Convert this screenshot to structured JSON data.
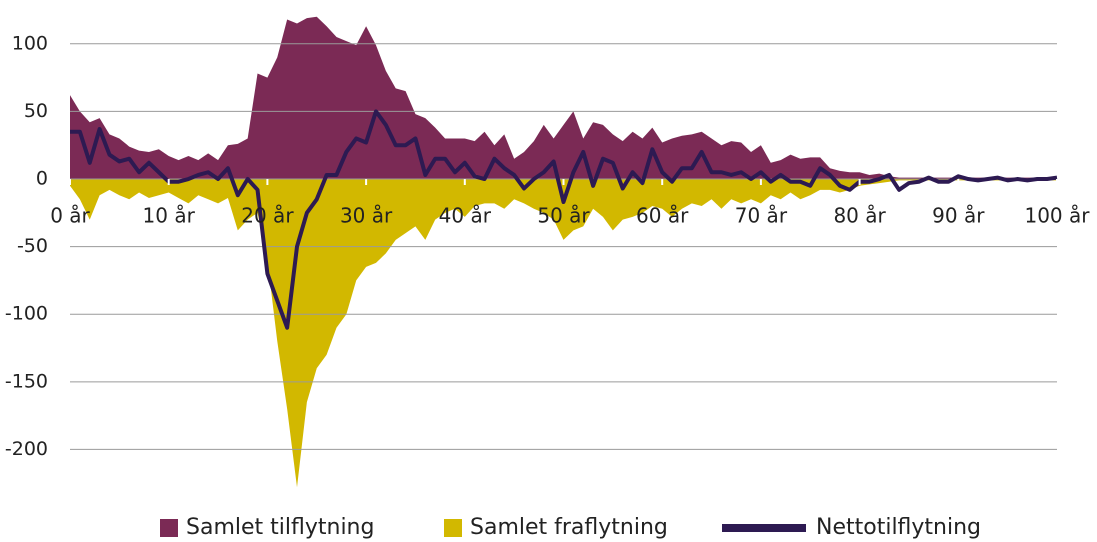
{
  "chart_data": {
    "type": "area-line",
    "x": [
      0,
      1,
      2,
      3,
      4,
      5,
      6,
      7,
      8,
      9,
      10,
      11,
      12,
      13,
      14,
      15,
      16,
      17,
      18,
      19,
      20,
      21,
      22,
      23,
      24,
      25,
      26,
      27,
      28,
      29,
      30,
      31,
      32,
      33,
      34,
      35,
      36,
      37,
      38,
      39,
      40,
      41,
      42,
      43,
      44,
      45,
      46,
      47,
      48,
      49,
      50,
      51,
      52,
      53,
      54,
      55,
      56,
      57,
      58,
      59,
      60,
      61,
      62,
      63,
      64,
      65,
      66,
      67,
      68,
      69,
      70,
      71,
      72,
      73,
      74,
      75,
      76,
      77,
      78,
      79,
      80,
      81,
      82,
      83,
      84,
      85,
      86,
      87,
      88,
      89,
      90,
      91,
      92,
      93,
      94,
      95,
      96,
      97,
      98,
      99,
      100
    ],
    "series": [
      {
        "name": "Samlet tilflytning",
        "color": "#7b2a55",
        "kind": "area",
        "values": [
          62,
          50,
          42,
          45,
          33,
          30,
          24,
          21,
          20,
          22,
          17,
          14,
          17,
          14,
          19,
          14,
          25,
          26,
          30,
          78,
          75,
          90,
          118,
          115,
          119,
          120,
          113,
          105,
          102,
          99,
          113,
          99,
          80,
          67,
          65,
          48,
          45,
          38,
          30,
          30,
          30,
          28,
          35,
          25,
          33,
          15,
          20,
          28,
          40,
          30,
          40,
          50,
          30,
          42,
          40,
          33,
          28,
          35,
          30,
          38,
          27,
          30,
          32,
          33,
          35,
          30,
          25,
          28,
          27,
          20,
          25,
          12,
          14,
          18,
          15,
          16,
          16,
          8,
          6,
          5,
          5,
          3,
          4,
          2,
          1,
          1,
          1,
          1,
          1,
          1,
          1,
          1,
          1,
          1,
          1,
          1,
          1,
          1,
          1,
          1,
          1
        ]
      },
      {
        "name": "Samlet fraflytning",
        "color": "#d2b800",
        "kind": "area",
        "values": [
          -5,
          -15,
          -30,
          -12,
          -8,
          -12,
          -15,
          -10,
          -14,
          -12,
          -10,
          -14,
          -18,
          -12,
          -15,
          -18,
          -14,
          -38,
          -30,
          -25,
          -60,
          -120,
          -170,
          -228,
          -165,
          -140,
          -130,
          -110,
          -100,
          -75,
          -65,
          -62,
          -55,
          -45,
          -40,
          -35,
          -45,
          -30,
          -25,
          -22,
          -28,
          -20,
          -18,
          -18,
          -22,
          -15,
          -18,
          -22,
          -25,
          -30,
          -45,
          -38,
          -35,
          -22,
          -28,
          -38,
          -30,
          -28,
          -25,
          -20,
          -22,
          -28,
          -22,
          -18,
          -20,
          -15,
          -22,
          -15,
          -18,
          -15,
          -18,
          -12,
          -15,
          -10,
          -15,
          -12,
          -8,
          -8,
          -10,
          -8,
          -5,
          -4,
          -3,
          -2,
          -1,
          -1,
          -1,
          -1,
          -1,
          -1,
          -1,
          -1,
          -1,
          -1,
          -1,
          -1,
          -1,
          -1,
          -1,
          -1,
          -1
        ]
      },
      {
        "name": "Nettotilflytning",
        "color": "#2d1a52",
        "kind": "line",
        "values": [
          35,
          35,
          12,
          37,
          18,
          13,
          15,
          5,
          12,
          5,
          -2,
          -2,
          0,
          3,
          5,
          0,
          8,
          -12,
          0,
          -8,
          -70,
          -90,
          -110,
          -50,
          -25,
          -15,
          3,
          3,
          20,
          30,
          27,
          50,
          40,
          25,
          25,
          30,
          3,
          15,
          15,
          5,
          12,
          2,
          0,
          15,
          8,
          3,
          -7,
          0,
          5,
          13,
          -17,
          5,
          20,
          -5,
          15,
          12,
          -7,
          5,
          -3,
          22,
          5,
          -2,
          8,
          8,
          20,
          5,
          5,
          3,
          5,
          0,
          5,
          -2,
          3,
          -2,
          -2,
          -5,
          8,
          3,
          -5,
          -8,
          -2,
          -2,
          0,
          3,
          -8,
          -3,
          -2,
          1,
          -2,
          -2,
          2,
          0,
          -1,
          0,
          1,
          -1,
          0,
          -1,
          0,
          0,
          1
        ]
      }
    ],
    "xlim": [
      0,
      100
    ],
    "xticks": [
      {
        "value": 0,
        "label": "0 år"
      },
      {
        "value": 10,
        "label": "10 år"
      },
      {
        "value": 20,
        "label": "20 år"
      },
      {
        "value": 30,
        "label": "30 år"
      },
      {
        "value": 40,
        "label": "40 år"
      },
      {
        "value": 50,
        "label": "50 år"
      },
      {
        "value": 60,
        "label": "60 år"
      },
      {
        "value": 70,
        "label": "70 år"
      },
      {
        "value": 80,
        "label": "80 år"
      },
      {
        "value": 90,
        "label": "90 år"
      },
      {
        "value": 100,
        "label": "100 år"
      }
    ],
    "ylim": [
      -230,
      125
    ],
    "yticks": [
      100,
      50,
      0,
      -50,
      -100,
      -150,
      -200
    ],
    "grid": true
  }
}
